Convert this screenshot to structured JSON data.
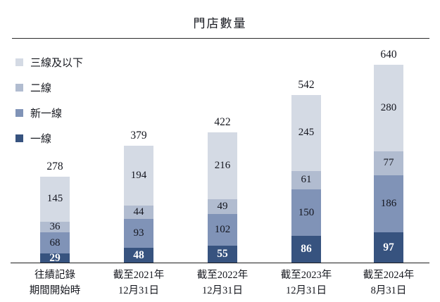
{
  "title": "門店數量",
  "legend": {
    "items": [
      {
        "label": "三線及以下",
        "color": "#d4dae4"
      },
      {
        "label": "二線",
        "color": "#b1bcd0"
      },
      {
        "label": "新一線",
        "color": "#8093b7"
      },
      {
        "label": "一線",
        "color": "#37537f"
      }
    ]
  },
  "chart_data": {
    "type": "bar",
    "subtype": "stacked-vertical",
    "title": "門店數量",
    "categories": [
      [
        "往績記錄",
        "期間開始時"
      ],
      [
        "截至2021年",
        "12月31日"
      ],
      [
        "截至2022年",
        "12月31日"
      ],
      [
        "截至2023年",
        "12月31日"
      ],
      [
        "截至2024年",
        "8月31日"
      ]
    ],
    "series": [
      {
        "name": "一線",
        "color": "#37537f",
        "text_color": "#ffffff",
        "values": [
          29,
          48,
          55,
          86,
          97
        ]
      },
      {
        "name": "新一線",
        "color": "#8093b7",
        "text_color": "#14161f",
        "values": [
          68,
          93,
          102,
          150,
          186
        ]
      },
      {
        "name": "二線",
        "color": "#b1bcd0",
        "text_color": "#14161f",
        "values": [
          36,
          44,
          49,
          61,
          77
        ]
      },
      {
        "name": "三線及以下",
        "color": "#d4dae4",
        "text_color": "#14161f",
        "values": [
          145,
          194,
          216,
          245,
          280
        ]
      }
    ],
    "totals": [
      278,
      379,
      422,
      542,
      640
    ],
    "xlabel": "",
    "ylabel": "",
    "grid": false,
    "legend_position": "top-left",
    "value_labels": "inside-segments-and-total-on-top"
  }
}
